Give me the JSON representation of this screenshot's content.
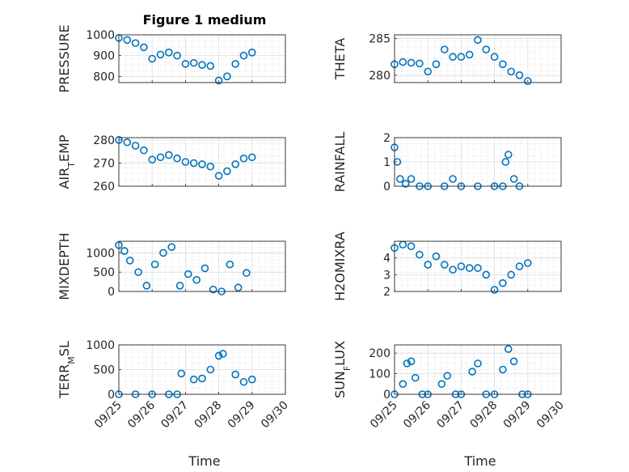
{
  "figure": {
    "title": "Figure 1 medium",
    "marker_color": "#0072BD"
  },
  "chart_data": [
    {
      "type": "scatter",
      "ylabel": "PRESSURE",
      "title": "Figure 1 medium",
      "xlim": [
        "09/25",
        "09/30"
      ],
      "ylim": [
        770,
        1000
      ],
      "yticks": [
        "800",
        "900",
        "1000"
      ],
      "grid": "on",
      "x": [
        "09/25 00:00",
        "09/25 06:00",
        "09/25 12:00",
        "09/25 18:00",
        "09/26 00:00",
        "09/26 06:00",
        "09/26 12:00",
        "09/26 18:00",
        "09/27 00:00",
        "09/27 06:00",
        "09/27 12:00",
        "09/27 18:00",
        "09/28 00:00",
        "09/28 06:00",
        "09/28 12:00",
        "09/28 18:00",
        "09/29 00:00"
      ],
      "values": [
        985,
        975,
        960,
        940,
        885,
        905,
        915,
        900,
        860,
        865,
        855,
        850,
        780,
        800,
        860,
        900,
        915
      ]
    },
    {
      "type": "scatter",
      "ylabel": "THETA",
      "xlim": [
        "09/25",
        "09/30"
      ],
      "ylim": [
        279,
        285.5
      ],
      "yticks": [
        "280",
        "285"
      ],
      "grid": "on",
      "x": [
        "09/25 00:00",
        "09/25 06:00",
        "09/25 12:00",
        "09/25 18:00",
        "09/26 00:00",
        "09/26 06:00",
        "09/26 12:00",
        "09/26 18:00",
        "09/27 00:00",
        "09/27 06:00",
        "09/27 12:00",
        "09/27 18:00",
        "09/28 00:00",
        "09/28 06:00",
        "09/28 12:00",
        "09/28 18:00",
        "09/29 00:00"
      ],
      "values": [
        281.5,
        281.8,
        281.7,
        281.6,
        280.5,
        281.5,
        283.5,
        282.5,
        282.5,
        282.8,
        284.8,
        283.5,
        282.5,
        281.5,
        280.5,
        280.0,
        279.2
      ]
    },
    {
      "type": "scatter",
      "ylabel": "AIR_TEMP",
      "xlim": [
        "09/25",
        "09/30"
      ],
      "ylim": [
        260,
        281
      ],
      "yticks": [
        "260",
        "270",
        "280"
      ],
      "grid": "on",
      "x": [
        "09/25 00:00",
        "09/25 06:00",
        "09/25 12:00",
        "09/25 18:00",
        "09/26 00:00",
        "09/26 06:00",
        "09/26 12:00",
        "09/26 18:00",
        "09/27 00:00",
        "09/27 06:00",
        "09/27 12:00",
        "09/27 18:00",
        "09/28 00:00",
        "09/28 06:00",
        "09/28 12:00",
        "09/28 18:00",
        "09/29 00:00"
      ],
      "values": [
        280,
        279,
        277.5,
        275.5,
        271.5,
        272.5,
        273.5,
        272.0,
        270.5,
        270.0,
        269.5,
        268.5,
        264.5,
        266.5,
        269.5,
        272.0,
        272.5
      ]
    },
    {
      "type": "scatter",
      "ylabel": "RAINFALL",
      "xlim": [
        "09/25",
        "09/30"
      ],
      "ylim": [
        0,
        2
      ],
      "yticks": [
        "0",
        "1",
        "2"
      ],
      "grid": "on",
      "x": [
        "09/25 00:00",
        "09/25 02:00",
        "09/25 04:00",
        "09/25 08:00",
        "09/25 12:00",
        "09/25 18:00",
        "09/26 00:00",
        "09/26 12:00",
        "09/26 18:00",
        "09/27 00:00",
        "09/27 12:00",
        "09/28 00:00",
        "09/28 06:00",
        "09/28 08:00",
        "09/28 10:00",
        "09/28 14:00",
        "09/28 18:00"
      ],
      "values": [
        1.6,
        1.0,
        0.3,
        0.1,
        0.3,
        0.0,
        0.0,
        0.0,
        0.3,
        0.0,
        0.0,
        0.0,
        0.0,
        1.0,
        1.3,
        0.3,
        0.0
      ]
    },
    {
      "type": "scatter",
      "ylabel": "MIXDEPTH",
      "xlim": [
        "09/25",
        "09/30"
      ],
      "ylim": [
        0,
        1300
      ],
      "yticks": [
        "0",
        "500",
        "1000"
      ],
      "grid": "on",
      "x": [
        "09/25 00:00",
        "09/25 04:00",
        "09/25 08:00",
        "09/25 14:00",
        "09/25 20:00",
        "09/26 02:00",
        "09/26 08:00",
        "09/26 14:00",
        "09/26 20:00",
        "09/27 02:00",
        "09/27 08:00",
        "09/27 14:00",
        "09/27 20:00",
        "09/28 02:00",
        "09/28 08:00",
        "09/28 14:00",
        "09/28 20:00"
      ],
      "values": [
        1200,
        1050,
        800,
        500,
        150,
        700,
        1000,
        1150,
        150,
        450,
        300,
        600,
        50,
        0,
        700,
        100,
        480
      ]
    },
    {
      "type": "scatter",
      "ylabel": "H2OMIXRA",
      "xlim": [
        "09/25",
        "09/30"
      ],
      "ylim": [
        2,
        5
      ],
      "yticks": [
        "2",
        "3",
        "4"
      ],
      "grid": "on",
      "x": [
        "09/25 00:00",
        "09/25 06:00",
        "09/25 12:00",
        "09/25 18:00",
        "09/26 00:00",
        "09/26 06:00",
        "09/26 12:00",
        "09/26 18:00",
        "09/27 00:00",
        "09/27 06:00",
        "09/27 12:00",
        "09/27 18:00",
        "09/28 00:00",
        "09/28 06:00",
        "09/28 12:00",
        "09/28 18:00",
        "09/29 00:00"
      ],
      "values": [
        4.6,
        4.8,
        4.7,
        4.2,
        3.6,
        4.1,
        3.6,
        3.3,
        3.5,
        3.4,
        3.4,
        3.0,
        2.1,
        2.5,
        3.0,
        3.5,
        3.7
      ]
    },
    {
      "type": "scatter",
      "ylabel": "TERR_MSL",
      "xlim": [
        "09/25",
        "09/30"
      ],
      "ylim": [
        0,
        1000
      ],
      "yticks": [
        "0",
        "500",
        "1000"
      ],
      "grid": "on",
      "x": [
        "09/25 00:00",
        "09/25 12:00",
        "09/26 00:00",
        "09/26 12:00",
        "09/26 18:00",
        "09/26 21:00",
        "09/27 06:00",
        "09/27 12:00",
        "09/27 18:00",
        "09/28 00:00",
        "09/28 03:00",
        "09/28 12:00",
        "09/28 18:00",
        "09/29 00:00"
      ],
      "values": [
        0,
        0,
        0,
        0,
        0,
        420,
        300,
        320,
        500,
        780,
        820,
        400,
        250,
        300
      ]
    },
    {
      "type": "scatter",
      "ylabel": "SUN_FLUX",
      "xlim": [
        "09/25",
        "09/30"
      ],
      "ylim": [
        0,
        240
      ],
      "yticks": [
        "0",
        "100",
        "200"
      ],
      "grid": "on",
      "x": [
        "09/25 00:00",
        "09/25 06:00",
        "09/25 09:00",
        "09/25 12:00",
        "09/25 15:00",
        "09/25 20:00",
        "09/26 00:00",
        "09/26 10:00",
        "09/26 14:00",
        "09/26 20:00",
        "09/27 00:00",
        "09/27 08:00",
        "09/27 12:00",
        "09/27 18:00",
        "09/28 00:00",
        "09/28 06:00",
        "09/28 10:00",
        "09/28 14:00",
        "09/28 20:00",
        "09/29 00:00"
      ],
      "values": [
        0,
        50,
        150,
        160,
        80,
        0,
        0,
        50,
        90,
        0,
        0,
        110,
        150,
        0,
        0,
        120,
        220,
        160,
        0,
        0
      ]
    }
  ],
  "x_axis": {
    "ticks": [
      "09/25",
      "09/26",
      "09/27",
      "09/28",
      "09/29",
      "09/30"
    ],
    "label": "Time"
  }
}
